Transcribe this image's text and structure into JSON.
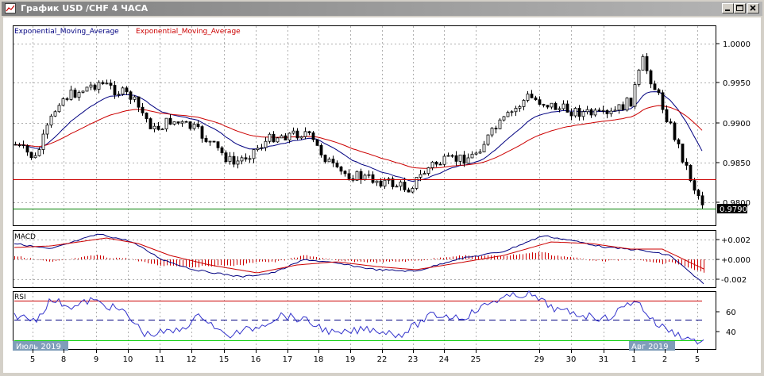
{
  "window": {
    "title": "График USD /CHF  4 ЧАСА"
  },
  "main": {
    "legend": [
      {
        "label": "Exponential_Moving_Average",
        "color": "#000080"
      },
      {
        "label": "Exponential_Moving_Average",
        "color": "#cc0000"
      }
    ],
    "price_ticks": [
      "1.0000",
      "0.9950",
      "0.9900",
      "0.9850",
      "0.9800"
    ],
    "current_price": "0.9790"
  },
  "macd": {
    "label": "MACD",
    "ticks": [
      "+0.002",
      "+0.000",
      "-0.002"
    ]
  },
  "rsi": {
    "label": "RSI",
    "ticks": [
      "60",
      "40"
    ]
  },
  "xaxis": {
    "ticks": [
      "5",
      "8",
      "9",
      "10",
      "11",
      "12",
      "15",
      "16",
      "17",
      "18",
      "19",
      "22",
      "23",
      "24",
      "25",
      "29",
      "30",
      "31",
      "1",
      "2",
      "5"
    ],
    "period_labels": [
      "Июль 2019",
      "Авг 2019"
    ]
  },
  "colors": {
    "ema_fast": "#000080",
    "ema_slow": "#cc0000",
    "support": "#cc0000",
    "current": "#008000",
    "rsi_levels": "#cc0000",
    "rsi_mid": "#000080",
    "rsi_low": "#00cc00",
    "rsi_line": "#3333cc",
    "rsi_high": "#cc00cc"
  }
}
